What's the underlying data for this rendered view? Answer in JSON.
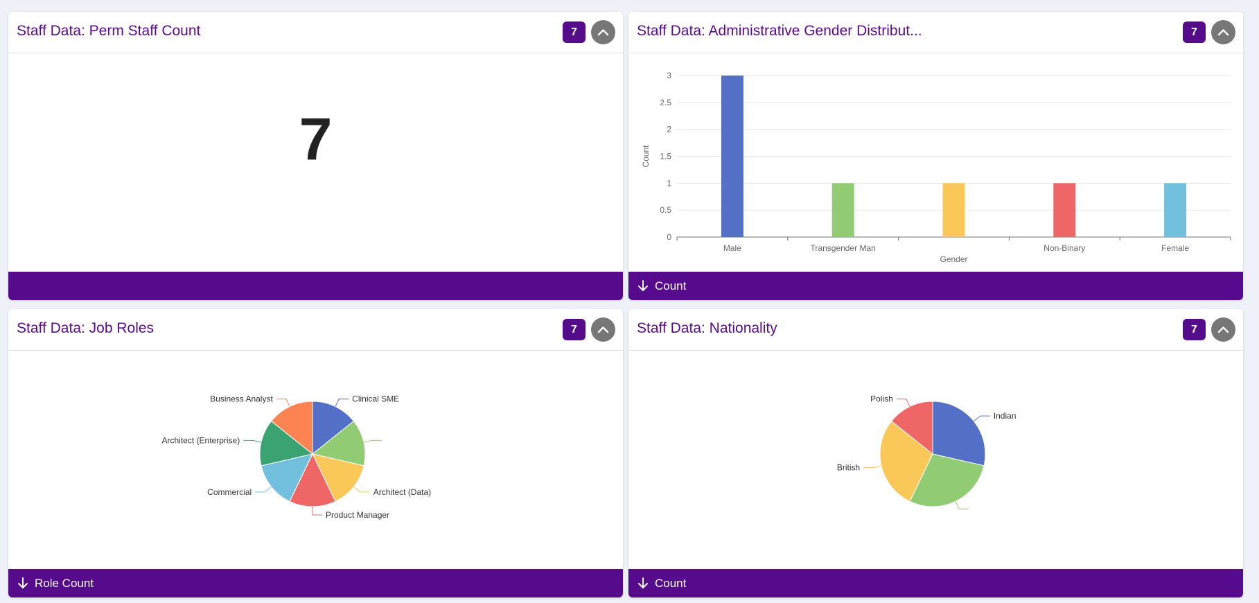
{
  "colors": {
    "accent": "#560b8c",
    "title": "#5a0a8c",
    "palette": [
      "#5470c6",
      "#91cc75",
      "#fac858",
      "#ee6666",
      "#73c0de",
      "#3ba272",
      "#fc8452"
    ]
  },
  "cards": {
    "perm_count": {
      "title": "Staff Data: Perm Staff Count",
      "badge": "7",
      "value": "7",
      "footer_label": ""
    },
    "gender": {
      "title": "Staff Data: Administrative Gender Distribut...",
      "badge": "7",
      "footer_label": "Count"
    },
    "job_roles": {
      "title": "Staff Data: Job Roles",
      "badge": "7",
      "footer_label": "Role Count"
    },
    "nationality": {
      "title": "Staff Data: Nationality",
      "badge": "7",
      "footer_label": "Count"
    }
  },
  "chart_data": [
    {
      "type": "bar",
      "title": "Staff Data: Administrative Gender Distribut...",
      "categories": [
        "Male",
        "Transgender Man",
        "",
        "Non-Binary",
        "Female"
      ],
      "values": [
        3,
        1,
        1,
        1,
        1
      ],
      "xlabel": "Gender",
      "ylabel": "Count",
      "ylim": [
        0,
        3
      ],
      "yticks": [
        "0",
        "0.5",
        "1",
        "1.5",
        "2",
        "2.5",
        "3"
      ]
    },
    {
      "type": "pie",
      "title": "Staff Data: Job Roles",
      "labels": [
        "Clinical SME",
        "",
        "Architect (Data)",
        "Product Manager",
        "Commercial",
        "Architect (Enterprise)",
        "Business Analyst"
      ],
      "values": [
        1,
        1,
        1,
        1,
        1,
        1,
        1
      ]
    },
    {
      "type": "pie",
      "title": "Staff Data: Nationality",
      "labels": [
        "Indian",
        "",
        "British",
        "Polish"
      ],
      "values": [
        2,
        2,
        2,
        1
      ]
    }
  ]
}
